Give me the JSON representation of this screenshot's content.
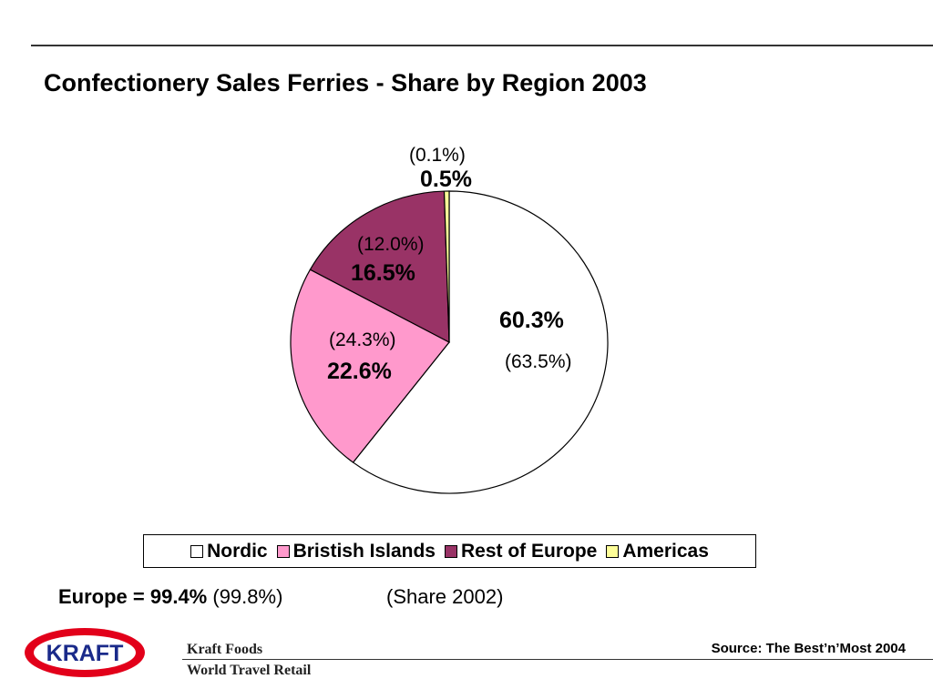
{
  "title": "Confectionery Sales Ferries - Share by Region 2003",
  "chart_data": {
    "type": "pie",
    "title": "Confectionery Sales Ferries - Share by Region 2003",
    "slices": [
      {
        "name": "Nordic",
        "value": 60.3,
        "label": "60.3%",
        "prev_label": "(63.5%)",
        "color": "#FFFFFF"
      },
      {
        "name": "Bristish Islands",
        "value": 22.6,
        "label": "22.6%",
        "prev_label": "(24.3%)",
        "color": "#FF99CC"
      },
      {
        "name": "Rest of Europe",
        "value": 16.5,
        "label": "16.5%",
        "prev_label": "(12.0%)",
        "color": "#993366"
      },
      {
        "name": "Americas",
        "value": 0.5,
        "label": "0.5%",
        "prev_label": "(0.1%)",
        "color": "#FFFF99"
      }
    ],
    "legend_position": "bottom"
  },
  "legend": {
    "items": [
      {
        "label": "Nordic",
        "color": "#FFFFFF"
      },
      {
        "label": "Bristish Islands",
        "color": "#FF99CC"
      },
      {
        "label": "Rest of Europe",
        "color": "#993366"
      },
      {
        "label": "Americas",
        "color": "#FFFF99"
      }
    ]
  },
  "europe_note": {
    "label": "Europe = 99.4%",
    "prev": "(99.8%)"
  },
  "share_note": "(Share 2002)",
  "footer": {
    "logo_text": "KRAFT",
    "company": "Kraft Foods",
    "division": "World Travel Retail",
    "source": "Source: The Best’n’Most 2004"
  }
}
